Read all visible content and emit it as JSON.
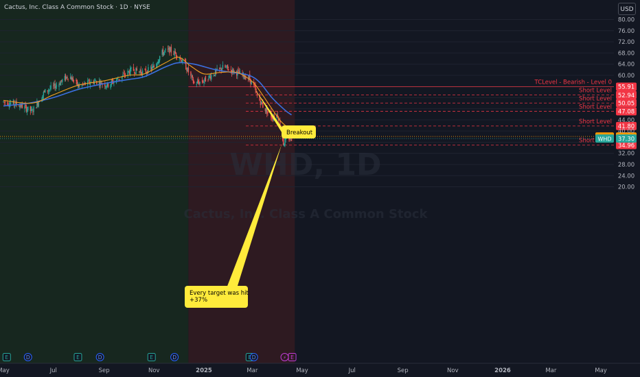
{
  "header": {
    "title": "Cactus, Inc. Class A Common Stock · 1D · NYSE",
    "currency": "USD"
  },
  "watermark": {
    "ticker": "WHD, 1D",
    "name": "Cactus, Inc. Class A Common Stock"
  },
  "colors": {
    "background": "#131722",
    "zone_green": "#17271f",
    "zone_red": "#2e1a21",
    "candle_up": "#26a69a",
    "candle_down": "#ef5350",
    "ma_fast": "#f0a021",
    "ma_slow": "#3b6fe0",
    "level_line": "#f23645",
    "callout": "#ffeb3b",
    "pre_badge": "#ff9800",
    "price_badge": "#26a69a"
  },
  "chart_data": {
    "type": "candlestick",
    "title": "Cactus, Inc. Class A Common Stock · 1D · NYSE",
    "ylim": [
      19.5,
      84
    ],
    "y_ticks": [
      20,
      24,
      28,
      32,
      36,
      40,
      44,
      48,
      52,
      56,
      60,
      64,
      68,
      72,
      76,
      80
    ],
    "x_ticks": [
      "May",
      "Jul",
      "Sep",
      "Nov",
      "2025",
      "Mar",
      "May",
      "Jul",
      "Sep",
      "Nov",
      "2026",
      "Mar",
      "May"
    ],
    "zones": [
      {
        "from": "May 2024",
        "to": "Dec 2024",
        "color": "green"
      },
      {
        "from": "Dec 2024",
        "to": "Apr 2025",
        "color": "red"
      }
    ],
    "price_path": [
      [
        "2024-05-01",
        50.5
      ],
      [
        "2024-05-20",
        49.5
      ],
      [
        "2024-06-05",
        47
      ],
      [
        "2024-06-20",
        54
      ],
      [
        "2024-07-05",
        56.5
      ],
      [
        "2024-07-20",
        60
      ],
      [
        "2024-08-01",
        56
      ],
      [
        "2024-08-20",
        58
      ],
      [
        "2024-09-05",
        56.5
      ],
      [
        "2024-09-20",
        59
      ],
      [
        "2024-10-05",
        62
      ],
      [
        "2024-10-20",
        61
      ],
      [
        "2024-11-01",
        63
      ],
      [
        "2024-11-10",
        68
      ],
      [
        "2024-11-20",
        69
      ],
      [
        "2024-12-01",
        67
      ],
      [
        "2024-12-10",
        63
      ],
      [
        "2024-12-20",
        57
      ],
      [
        "2025-01-01",
        58
      ],
      [
        "2025-01-10",
        60
      ],
      [
        "2025-01-25",
        63
      ],
      [
        "2025-02-10",
        61
      ],
      [
        "2025-02-25",
        59
      ],
      [
        "2025-03-03",
        56
      ],
      [
        "2025-03-07",
        52.5
      ],
      [
        "2025-03-15",
        48.5
      ],
      [
        "2025-03-25",
        45
      ],
      [
        "2025-04-01",
        46
      ],
      [
        "2025-04-05",
        41
      ],
      [
        "2025-04-08",
        35.5
      ],
      [
        "2025-04-12",
        37.5
      ],
      [
        "2025-04-18",
        37.3
      ]
    ],
    "ma_fast": [
      [
        "2024-05-01",
        51
      ],
      [
        "2024-06-05",
        50
      ],
      [
        "2024-07-01",
        53
      ],
      [
        "2024-08-01",
        56.5
      ],
      [
        "2024-09-01",
        58
      ],
      [
        "2024-10-01",
        60
      ],
      [
        "2024-10-20",
        60.5
      ],
      [
        "2024-11-15",
        64.5
      ],
      [
        "2024-12-01",
        66.5
      ],
      [
        "2024-12-15",
        63.5
      ],
      [
        "2025-01-01",
        60.5
      ],
      [
        "2025-01-20",
        61
      ],
      [
        "2025-02-10",
        61
      ],
      [
        "2025-02-28",
        58
      ],
      [
        "2025-03-10",
        54.5
      ],
      [
        "2025-03-25",
        48
      ],
      [
        "2025-04-05",
        43.5
      ],
      [
        "2025-04-18",
        40.2
      ]
    ],
    "ma_slow": [
      [
        "2024-05-01",
        49
      ],
      [
        "2024-06-01",
        50
      ],
      [
        "2024-07-01",
        52
      ],
      [
        "2024-08-01",
        55
      ],
      [
        "2024-09-01",
        57
      ],
      [
        "2024-10-01",
        58.5
      ],
      [
        "2024-10-20",
        59.5
      ],
      [
        "2024-11-15",
        63
      ],
      [
        "2024-12-01",
        64.5
      ],
      [
        "2024-12-20",
        64
      ],
      [
        "2025-01-15",
        62
      ],
      [
        "2025-02-05",
        61
      ],
      [
        "2025-02-25",
        60
      ],
      [
        "2025-03-10",
        57.5
      ],
      [
        "2025-03-25",
        52
      ],
      [
        "2025-04-10",
        47.5
      ],
      [
        "2025-04-18",
        45.8
      ]
    ],
    "levels": [
      {
        "price": 55.91,
        "label": "55.91",
        "text": "TCLevel - Bearish - Level 0",
        "style": "solid"
      },
      {
        "price": 52.94,
        "label": "52.94",
        "text": "Short Level",
        "style": "dashed"
      },
      {
        "price": 50.05,
        "label": "50.05",
        "text": "Short Level",
        "style": "dashed"
      },
      {
        "price": 47.08,
        "label": "47.08",
        "text": "Short Level",
        "style": "dashed"
      },
      {
        "price": 41.8,
        "label": "41.80",
        "text": "Short Level",
        "style": "dashed"
      },
      {
        "price": 34.96,
        "label": "34.96",
        "text": "Short Level",
        "style": "dashed"
      }
    ],
    "pre_market": {
      "tag": "Pre",
      "price": 38.06
    },
    "last_price": {
      "tag": "WHD",
      "price": 37.3
    },
    "callouts": [
      {
        "text": [
          "Breakout"
        ],
        "anchor": [
          "2025-03-03",
          55.6
        ]
      },
      {
        "text": [
          "Every target was hit",
          "+37%"
        ],
        "anchor": [
          "2025-04-06",
          35.2
        ]
      }
    ],
    "events": [
      {
        "date": "2024-05-05",
        "letter": "E",
        "kind": "earnings"
      },
      {
        "date": "2024-05-31",
        "letter": "D",
        "kind": "dividend"
      },
      {
        "date": "2024-07-31",
        "letter": "E",
        "kind": "earnings"
      },
      {
        "date": "2024-08-27",
        "letter": "D",
        "kind": "dividend"
      },
      {
        "date": "2024-10-29",
        "letter": "E",
        "kind": "earnings"
      },
      {
        "date": "2024-11-26",
        "letter": "D",
        "kind": "dividend"
      },
      {
        "date": "2025-02-26",
        "letter": "E",
        "kind": "earnings"
      },
      {
        "date": "2025-03-03",
        "letter": "D",
        "kind": "dividend"
      },
      {
        "date": "2025-04-18",
        "letter": "E",
        "kind": "future"
      }
    ]
  }
}
